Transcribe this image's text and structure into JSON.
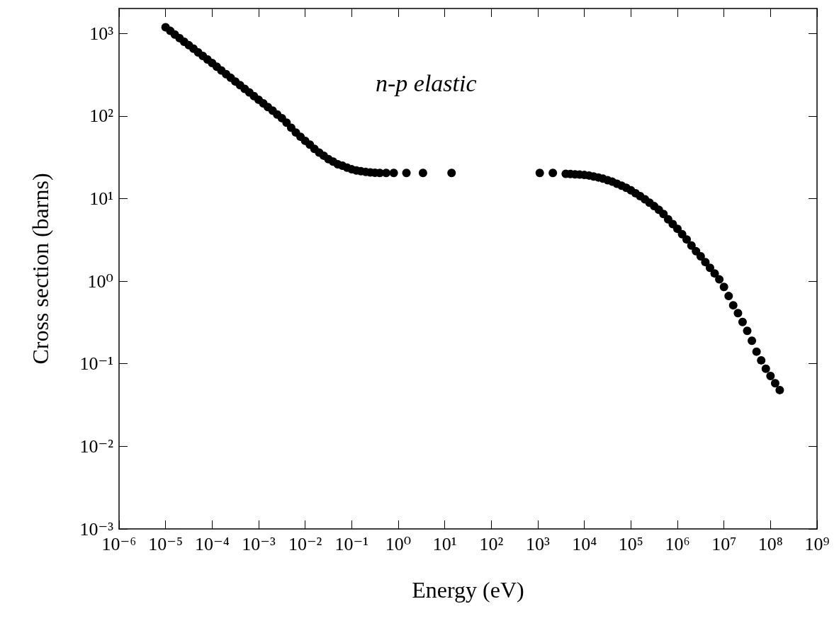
{
  "chart_data": {
    "type": "scatter",
    "xlabel": "Energy (eV)",
    "ylabel": "Cross section (barns)",
    "annotations": [
      "n-p elastic"
    ],
    "log": "xy",
    "grid": false,
    "marker": "circle",
    "xlim": [
      1e-06,
      1000000000.0
    ],
    "ylim": [
      0.001,
      2000
    ],
    "xticks": [
      {
        "value": 1e-06,
        "label": "10⁻⁶"
      },
      {
        "value": 1e-05,
        "label": "10⁻⁵"
      },
      {
        "value": 0.0001,
        "label": "10⁻⁴"
      },
      {
        "value": 0.001,
        "label": "10⁻³"
      },
      {
        "value": 0.01,
        "label": "10⁻²"
      },
      {
        "value": 0.1,
        "label": "10⁻¹"
      },
      {
        "value": 1,
        "label": "10⁰"
      },
      {
        "value": 10,
        "label": "10¹"
      },
      {
        "value": 100,
        "label": "10²"
      },
      {
        "value": 1000,
        "label": "10³"
      },
      {
        "value": 10000.0,
        "label": "10⁴"
      },
      {
        "value": 100000.0,
        "label": "10⁵"
      },
      {
        "value": 1000000.0,
        "label": "10⁶"
      },
      {
        "value": 10000000.0,
        "label": "10⁷"
      },
      {
        "value": 100000000.0,
        "label": "10⁸"
      },
      {
        "value": 1000000000.0,
        "label": "10⁹"
      }
    ],
    "yticks": [
      {
        "value": 0.001,
        "label": "10⁻³"
      },
      {
        "value": 0.01,
        "label": "10⁻²"
      },
      {
        "value": 0.1,
        "label": "10⁻¹"
      },
      {
        "value": 1,
        "label": "10⁰"
      },
      {
        "value": 10,
        "label": "10¹"
      },
      {
        "value": 100,
        "label": "10²"
      },
      {
        "value": 1000,
        "label": "10³"
      }
    ],
    "series": [
      {
        "color": "#000000",
        "x": [
          1e-05,
          1.26e-05,
          1.58e-05,
          2e-05,
          2.51e-05,
          3.16e-05,
          3.98e-05,
          5.01e-05,
          6.31e-05,
          7.94e-05,
          0.0001,
          0.000126,
          0.000158,
          0.0002,
          0.000251,
          0.000316,
          0.000398,
          0.000501,
          0.000631,
          0.000794,
          0.001,
          0.00126,
          0.00158,
          0.002,
          0.00251,
          0.00316,
          0.00398,
          0.00501,
          0.00631,
          0.00794,
          0.01,
          0.0126,
          0.0158,
          0.02,
          0.0251,
          0.0316,
          0.0398,
          0.0501,
          0.0631,
          0.0794,
          0.1,
          0.126,
          0.158,
          0.2,
          0.251,
          0.316,
          0.4,
          0.55,
          0.8,
          1.5,
          3.4,
          14,
          1100,
          2100,
          3980,
          5010,
          6310,
          7940,
          10000.0,
          12600.0,
          15800.0,
          20000.0,
          25100.0,
          31600.0,
          39800.0,
          50100.0,
          63100.0,
          79400.0,
          100000.0,
          126000.0,
          158000.0,
          200000.0,
          251000.0,
          316000.0,
          398000.0,
          501000.0,
          631000.0,
          794000.0,
          1000000.0,
          1260000.0,
          1580000.0,
          2000000.0,
          2510000.0,
          3160000.0,
          3980000.0,
          5010000.0,
          6310000.0,
          7940000.0,
          10000000.0,
          12600000.0,
          15800000.0,
          20000000.0,
          25100000.0,
          31600000.0,
          39800000.0,
          50100000.0,
          63100000.0,
          79400000.0,
          100000000.0,
          126000000.0,
          158000000.0
        ],
        "values": [
          1186,
          1072,
          968,
          875,
          791,
          719,
          652,
          589,
          533,
          483,
          437,
          394,
          356,
          321,
          290,
          261,
          236,
          213,
          193,
          174,
          157,
          142,
          128,
          116,
          104,
          94,
          83,
          72,
          63,
          56,
          50,
          45,
          40,
          36,
          33,
          30,
          28,
          26,
          25,
          23.7,
          22.6,
          21.9,
          21.4,
          21,
          20.7,
          20.5,
          20.4,
          20.4,
          20.4,
          20.4,
          20.4,
          20.4,
          20.4,
          20.4,
          19.9,
          19.8,
          19.6,
          19.5,
          19.3,
          19.0,
          18.5,
          18.0,
          17.4,
          16.7,
          16.0,
          15.1,
          14.3,
          13.5,
          12.6,
          11.6,
          10.7,
          9.8,
          8.9,
          8.1,
          7.3,
          6.5,
          5.6,
          4.9,
          4.3,
          3.7,
          3.2,
          2.7,
          2.3,
          2.0,
          1.7,
          1.45,
          1.24,
          1.05,
          0.85,
          0.66,
          0.51,
          0.41,
          0.32,
          0.25,
          0.19,
          0.14,
          0.11,
          0.087,
          0.071,
          0.058,
          0.048
        ]
      }
    ]
  }
}
